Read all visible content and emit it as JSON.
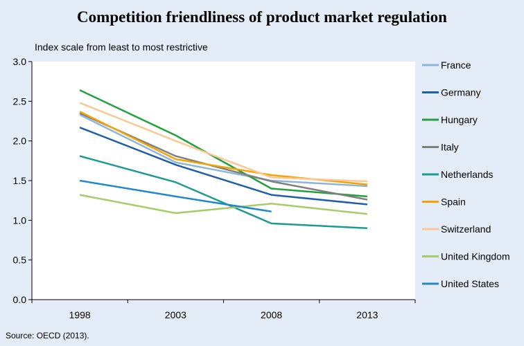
{
  "chart_data": {
    "type": "line",
    "title": "Competition friendliness of product market regulation",
    "subtitle": "Index scale from least to most restrictive",
    "source": "Source: OECD (2013).",
    "xlabel": "",
    "ylabel": "",
    "categories": [
      "1998",
      "2003",
      "2008",
      "2013"
    ],
    "ylim": [
      0.0,
      3.0
    ],
    "yticks": [
      "0.0",
      "0.5",
      "1.0",
      "1.5",
      "2.0",
      "2.5",
      "3.0"
    ],
    "legend_position": "right",
    "grid": false,
    "series": [
      {
        "name": "France",
        "color": "#8fb4da",
        "values": [
          2.33,
          1.73,
          1.5,
          1.43
        ]
      },
      {
        "name": "Germany",
        "color": "#1f5fa8",
        "values": [
          2.17,
          1.7,
          1.32,
          1.2
        ]
      },
      {
        "name": "Hungary",
        "color": "#22a03c",
        "values": [
          2.64,
          2.07,
          1.4,
          1.3
        ]
      },
      {
        "name": "Italy",
        "color": "#7f7f7f",
        "values": [
          2.35,
          1.81,
          1.49,
          1.26
        ]
      },
      {
        "name": "Netherlands",
        "color": "#1a9a93",
        "values": [
          1.81,
          1.48,
          0.96,
          0.9
        ]
      },
      {
        "name": "Spain",
        "color": "#f4a300",
        "values": [
          2.37,
          1.77,
          1.57,
          1.45
        ]
      },
      {
        "name": "Switzerland",
        "color": "#f9c896",
        "values": [
          2.48,
          2.0,
          1.54,
          1.49
        ]
      },
      {
        "name": "United Kingdom",
        "color": "#a6cc68",
        "values": [
          1.32,
          1.09,
          1.21,
          1.08
        ]
      },
      {
        "name": "United States",
        "color": "#1e88c8",
        "values": [
          1.5,
          1.3,
          1.11,
          null
        ]
      }
    ]
  }
}
